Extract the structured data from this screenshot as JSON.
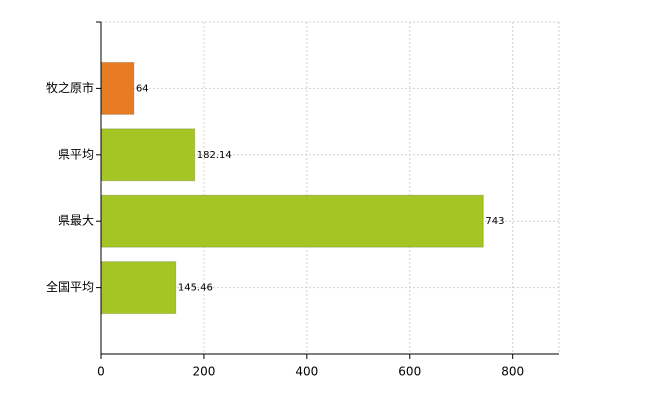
{
  "chart_data": {
    "type": "bar",
    "orientation": "horizontal",
    "categories": [
      "牧之原市",
      "県平均",
      "県最大",
      "全国平均"
    ],
    "values": [
      64,
      182.14,
      743,
      145.46
    ],
    "colors": [
      "#e87c25",
      "#a5c524",
      "#a5c524",
      "#a5c524"
    ],
    "xlim": [
      0,
      890
    ],
    "xticks": [
      0,
      200,
      400,
      600,
      800
    ],
    "grid": true
  }
}
